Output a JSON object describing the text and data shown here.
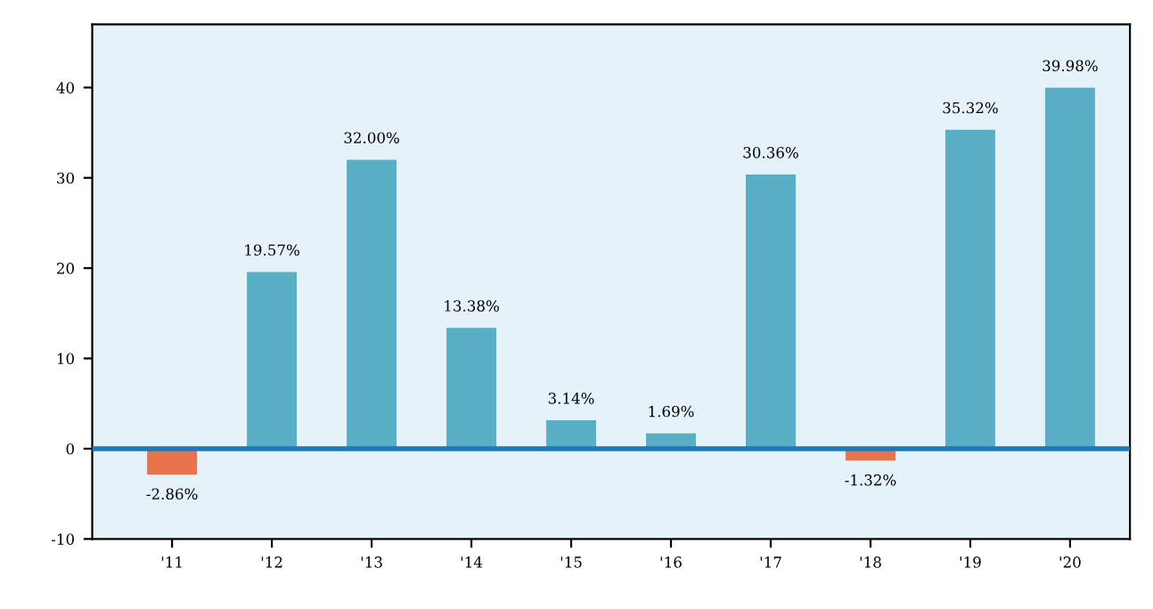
{
  "chart_data": {
    "type": "bar",
    "categories": [
      "'11",
      "'12",
      "'13",
      "'14",
      "'15",
      "'16",
      "'17",
      "'18",
      "'19",
      "'20"
    ],
    "values": [
      -2.86,
      19.57,
      32.0,
      13.38,
      3.14,
      1.69,
      30.36,
      -1.32,
      35.32,
      39.98
    ],
    "colors": [
      "#e8744c",
      "#5aaec6",
      "#5aaec6",
      "#5aaec6",
      "#5aaec6",
      "#5aaec6",
      "#5aaec6",
      "#e8744c",
      "#5aaec6",
      "#5aaec6"
    ],
    "value_labels": [
      "-2.86%",
      "19.57%",
      "32.00%",
      "13.38%",
      "3.14%",
      "1.69%",
      "30.36%",
      "-1.32%",
      "35.32%",
      "39.98%"
    ],
    "ylim": [
      -10,
      47
    ],
    "yticks": [
      -10,
      0,
      10,
      20,
      30,
      40
    ],
    "ref_lines": [
      {
        "axis": "y",
        "value": 0,
        "color": "#1f77b4",
        "line_style": "solid"
      }
    ],
    "grid": false,
    "legend": false
  }
}
